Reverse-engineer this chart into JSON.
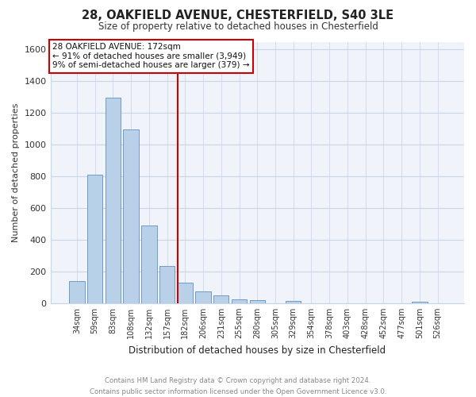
{
  "title": "28, OAKFIELD AVENUE, CHESTERFIELD, S40 3LE",
  "subtitle": "Size of property relative to detached houses in Chesterfield",
  "xlabel": "Distribution of detached houses by size in Chesterfield",
  "ylabel": "Number of detached properties",
  "bar_labels": [
    "34sqm",
    "59sqm",
    "83sqm",
    "108sqm",
    "132sqm",
    "157sqm",
    "182sqm",
    "206sqm",
    "231sqm",
    "255sqm",
    "280sqm",
    "305sqm",
    "329sqm",
    "354sqm",
    "378sqm",
    "403sqm",
    "428sqm",
    "452sqm",
    "477sqm",
    "501sqm",
    "526sqm"
  ],
  "bar_values": [
    140,
    810,
    1295,
    1095,
    490,
    235,
    130,
    75,
    50,
    25,
    20,
    0,
    15,
    0,
    0,
    0,
    0,
    0,
    0,
    10,
    0
  ],
  "bar_color": "#b8d0e8",
  "bar_edge_color": "#6090c0",
  "vline_x_index": 6,
  "vline_color": "#cc0000",
  "ylim": [
    0,
    1650
  ],
  "yticks": [
    0,
    200,
    400,
    600,
    800,
    1000,
    1200,
    1400,
    1600
  ],
  "annotation_title": "28 OAKFIELD AVENUE: 172sqm",
  "annotation_line1": "← 91% of detached houses are smaller (3,949)",
  "annotation_line2": "9% of semi-detached houses are larger (379) →",
  "annotation_box_color": "#ffffff",
  "annotation_box_edge": "#cc0000",
  "footer_line1": "Contains HM Land Registry data © Crown copyright and database right 2024.",
  "footer_line2": "Contains public sector information licensed under the Open Government Licence v3.0.",
  "background_color": "#ffffff",
  "plot_bg_color": "#f0f4fa",
  "grid_color": "#c8d4e8"
}
